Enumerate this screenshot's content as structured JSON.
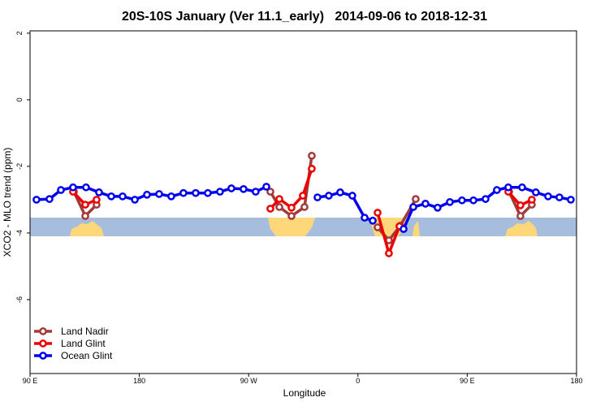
{
  "chart_data": {
    "type": "line",
    "title": "20S-10S January (Ver 11.1_early)   2014-09-06 to 2018-12-31",
    "x_label": "Longitude",
    "y_label": "XCO2 - MLO trend (ppm)",
    "xlim": [
      90,
      540
    ],
    "xticks": [
      {
        "value": 90,
        "label": "90 E"
      },
      180,
      {
        "value": 270,
        "label": "90 W"
      },
      {
        "value": 360,
        "label": "0"
      },
      {
        "value": 450,
        "label": "90 E"
      },
      {
        "value": 540,
        "label": "180"
      }
    ],
    "ylim": [
      -8.22,
      2.07
    ],
    "yticks": [
      2,
      0,
      -2,
      -4,
      -6
    ],
    "legend": "bottom-left",
    "series": [
      {
        "name": "Land Nadir",
        "color": "#a33a3a",
        "x": [
          126.1,
          135.5,
          144.8,
          null,
          287.9,
          295.3,
          305.3,
          316.0,
          322.0,
          null,
          376.2,
          385.5,
          394.9,
          407.6,
          null,
          484.5,
          493.8,
          503.2
        ],
        "values": [
          -2.76,
          -3.49,
          -3.15,
          null,
          -2.76,
          -3.22,
          -3.49,
          -3.22,
          -1.68,
          null,
          -3.83,
          -4.22,
          -3.78,
          -2.98,
          null,
          -2.76,
          -3.49,
          -3.15
        ]
      },
      {
        "name": "Land Glint",
        "color": "#ee0000",
        "x": [
          125.4,
          135.5,
          144.8,
          null,
          287.9,
          295.3,
          305.3,
          314.6,
          322.0,
          null,
          376.2,
          385.5,
          394.2,
          null,
          483.8,
          493.8,
          503.2
        ],
        "values": [
          -2.76,
          -3.15,
          -3.0,
          null,
          -3.27,
          -2.98,
          -3.24,
          -2.88,
          -2.07,
          null,
          -3.39,
          -4.61,
          -3.8,
          null,
          -2.76,
          -3.17,
          -3.0
        ]
      },
      {
        "name": "Ocean Glint",
        "color": "#0000ee",
        "x": [
          95.3,
          106.0,
          115.4,
          125.4,
          136.1,
          146.8,
          156.9,
          166.2,
          176.3,
          186.3,
          196.3,
          206.3,
          216.3,
          226.4,
          236.4,
          246.4,
          255.8,
          265.8,
          275.8,
          284.6,
          null,
          326.7,
          336.0,
          345.4,
          355.4,
          365.5,
          372.2,
          null,
          397.6,
          405.6,
          415.6,
          425.6,
          435.7,
          445.7,
          455.1,
          465.1,
          474.4,
          483.8,
          495.2,
          506.5,
          516.6,
          525.9,
          535.3
        ],
        "values": [
          -3.0,
          -2.98,
          -2.71,
          -2.63,
          -2.63,
          -2.78,
          -2.9,
          -2.9,
          -3.0,
          -2.85,
          -2.83,
          -2.9,
          -2.8,
          -2.8,
          -2.8,
          -2.76,
          -2.66,
          -2.68,
          -2.76,
          -2.61,
          null,
          -2.93,
          -2.88,
          -2.78,
          -2.88,
          -3.54,
          -3.63,
          null,
          -3.88,
          -3.22,
          -3.12,
          -3.24,
          -3.07,
          -3.02,
          -3.02,
          -2.98,
          -2.71,
          -2.63,
          -2.63,
          -2.78,
          -2.9,
          -2.93,
          -3.0
        ]
      }
    ]
  }
}
